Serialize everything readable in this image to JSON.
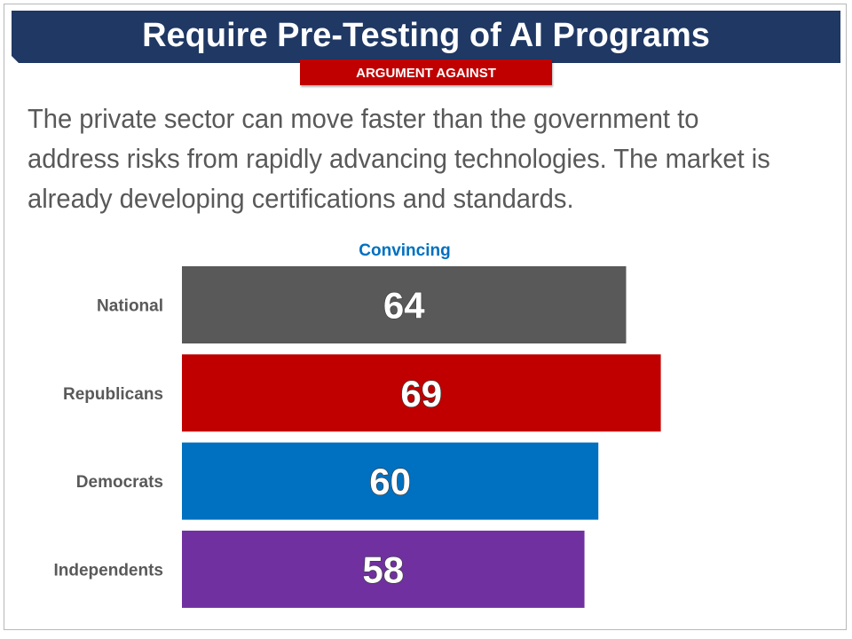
{
  "header": {
    "title": "Require Pre-Testing of AI Programs",
    "title_color": "#1f3864",
    "subtitle": "ARGUMENT AGAINST",
    "subtitle_color": "#c00000"
  },
  "statement": "The private sector can move faster than the government to address risks from rapidly advancing technologies. The market is already developing certifications and standards.",
  "chart_data": {
    "type": "bar",
    "orientation": "horizontal",
    "title": "",
    "column_header": "Convincing",
    "column_header_color": "#0070c0",
    "categories": [
      "National",
      "Republicans",
      "Democrats",
      "Independents"
    ],
    "values": [
      64,
      69,
      60,
      58
    ],
    "colors": [
      "#595959",
      "#c00000",
      "#0070c0",
      "#7030a0"
    ],
    "xlim": [
      0,
      100
    ],
    "grid": false,
    "legend": "none",
    "data_labels": true
  }
}
